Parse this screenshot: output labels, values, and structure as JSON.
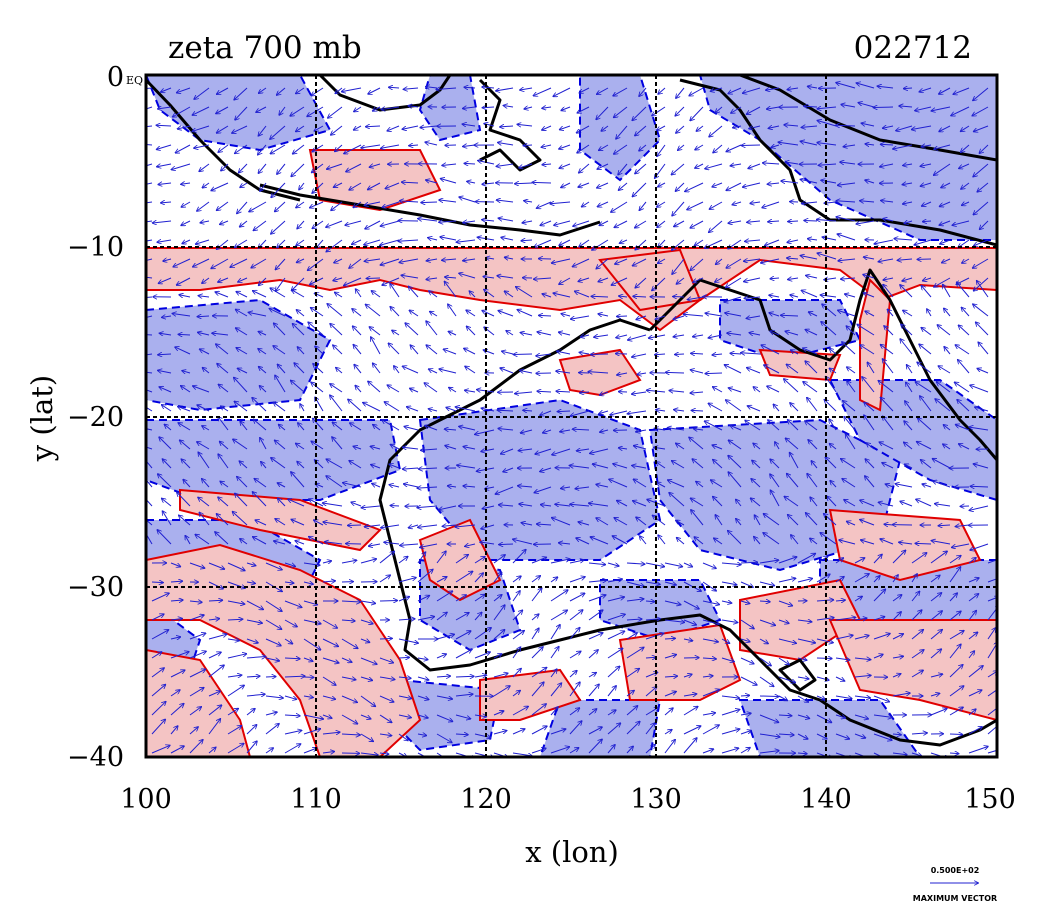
{
  "plot": {
    "title_left": "zeta 700 mb",
    "title_right": "022712",
    "xlabel": "x (lon)",
    "ylabel": "y (lat)",
    "corner_label": "EQ",
    "x_ticks": [
      "100",
      "110",
      "120",
      "130",
      "140",
      "150"
    ],
    "y_ticks": [
      "0",
      "−10",
      "−20",
      "−30",
      "−40"
    ],
    "vector_key_value": "0.500E+02",
    "vector_key_label": "MAXIMUM VECTOR"
  },
  "colors": {
    "positive_fill": "#f4c4c4",
    "positive_line": "#e00000",
    "negative_fill": "#aab0ee",
    "negative_line": "#0000e0",
    "vectors": "#2020d0",
    "coast": "#000000",
    "grid": "#000000"
  },
  "chart_data": {
    "type": "map",
    "variable": "zeta 700 mb",
    "time": "022712",
    "lon_range": [
      100,
      150
    ],
    "lat_range": [
      -40,
      0
    ],
    "x_ticks": [
      100,
      110,
      120,
      130,
      140,
      150
    ],
    "y_ticks": [
      0,
      -10,
      -20,
      -30,
      -40
    ],
    "grid": true,
    "layers": [
      "filled contours (positive red, negative blue)",
      "wind vectors",
      "coastlines"
    ]
  }
}
